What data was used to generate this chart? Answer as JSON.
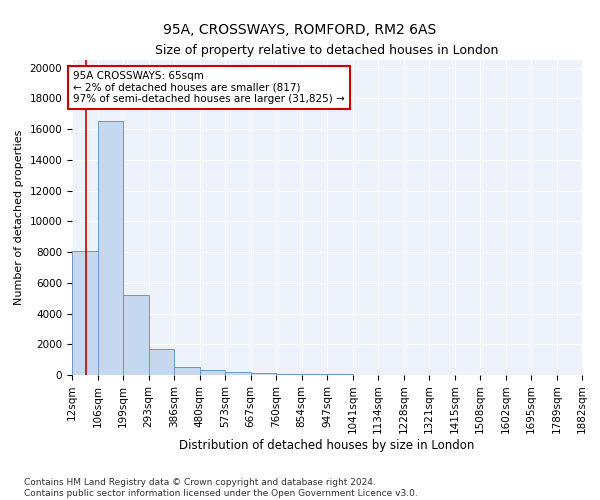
{
  "title1": "95A, CROSSWAYS, ROMFORD, RM2 6AS",
  "title2": "Size of property relative to detached houses in London",
  "xlabel": "Distribution of detached houses by size in London",
  "ylabel": "Number of detached properties",
  "bin_edges": [
    12,
    106,
    199,
    293,
    386,
    480,
    573,
    667,
    760,
    854,
    947,
    1041,
    1134,
    1228,
    1321,
    1415,
    1508,
    1602,
    1695,
    1789,
    1882
  ],
  "bar_heights": [
    8050,
    16500,
    5200,
    1700,
    500,
    300,
    180,
    120,
    80,
    60,
    40,
    30,
    22,
    15,
    10,
    7,
    5,
    4,
    3,
    2
  ],
  "bar_color": "#c5d8f0",
  "bar_edge_color": "#6699cc",
  "property_size": 65,
  "vline_color": "#cc0000",
  "annotation_text": "95A CROSSWAYS: 65sqm\n← 2% of detached houses are smaller (817)\n97% of semi-detached houses are larger (31,825) →",
  "annotation_box_color": "#ffffff",
  "annotation_box_edge": "#cc0000",
  "annotation_fontsize": 7.5,
  "ylim": [
    0,
    20500
  ],
  "yticks": [
    0,
    2000,
    4000,
    6000,
    8000,
    10000,
    12000,
    14000,
    16000,
    18000,
    20000
  ],
  "background_color": "#eef2fa",
  "grid_color": "#ffffff",
  "footer_text": "Contains HM Land Registry data © Crown copyright and database right 2024.\nContains public sector information licensed under the Open Government Licence v3.0.",
  "title1_fontsize": 10,
  "title2_fontsize": 9,
  "xlabel_fontsize": 8.5,
  "ylabel_fontsize": 8,
  "tick_fontsize": 7.5,
  "footer_fontsize": 6.5
}
